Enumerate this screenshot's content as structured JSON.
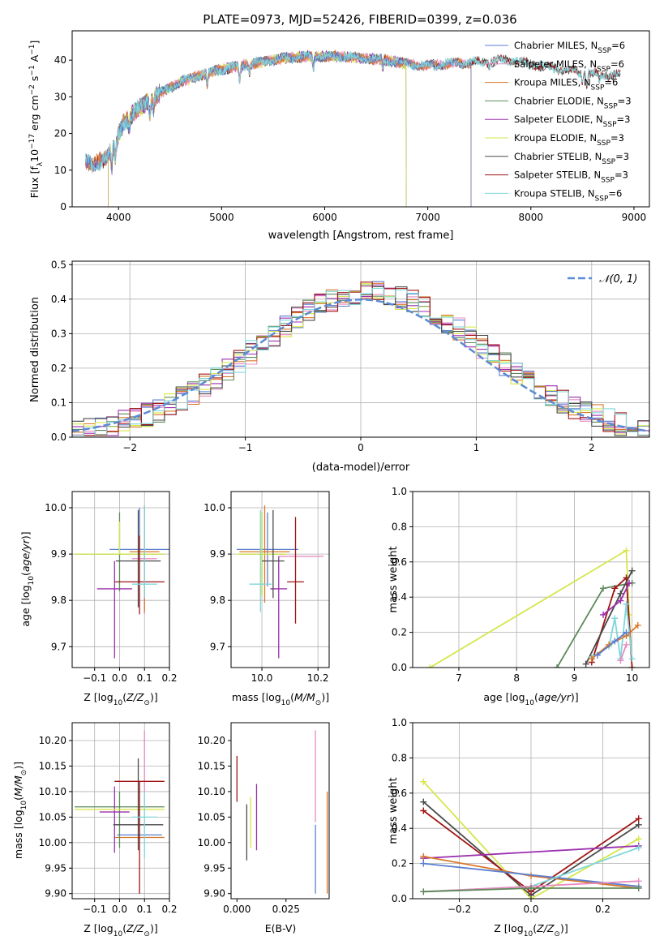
{
  "figure_title": "PLATE=0973, MJD=52426, FIBERID=0399, z=0.036",
  "colors": {
    "chabrier_miles": "#5b7fd0",
    "salpeter_miles": "#e88cc0",
    "kroupa_miles": "#d9782a",
    "chabrier_elodie": "#5d8a5a",
    "salpeter_elodie": "#9b2fae",
    "kroupa_elodie": "#d6e64a",
    "chabrier_stelib": "#4a4a4a",
    "salpeter_stelib": "#a01515",
    "kroupa_stelib": "#7fd6dc"
  },
  "chart_data": [
    {
      "type": "line",
      "id": "spectrum",
      "xlabel": "wavelength [Angstrom, rest frame]",
      "ylabel": "Flux [f_λ 10^-17 erg cm^-2 s^-1 A^-1]",
      "xlim": [
        3550,
        9150
      ],
      "ylim": [
        0,
        48
      ],
      "xticks": [
        4000,
        5000,
        6000,
        7000,
        8000,
        9000
      ],
      "yticks": [
        0,
        10,
        20,
        30,
        40
      ],
      "grid": false,
      "legend_position": "top-right",
      "legend": [
        {
          "key": "chabrier_miles",
          "label": "Chabrier MILES, N",
          "sub": "SSP",
          "suffix": "=6"
        },
        {
          "key": "salpeter_miles",
          "label": "Salpeter MILES, N",
          "sub": "SSP",
          "suffix": "=6"
        },
        {
          "key": "kroupa_miles",
          "label": "Kroupa MILES, N",
          "sub": "SSP",
          "suffix": "=6"
        },
        {
          "key": "chabrier_elodie",
          "label": "Chabrier ELODIE, N",
          "sub": "SSP",
          "suffix": "=3"
        },
        {
          "key": "salpeter_elodie",
          "label": "Salpeter ELODIE, N",
          "sub": "SSP",
          "suffix": "=3"
        },
        {
          "key": "kroupa_elodie",
          "label": "Kroupa ELODIE, N",
          "sub": "SSP",
          "suffix": "=3"
        },
        {
          "key": "chabrier_stelib",
          "label": "Chabrier STELIB, N",
          "sub": "SSP",
          "suffix": "=3"
        },
        {
          "key": "salpeter_stelib",
          "label": "Salpeter STELIB, N",
          "sub": "SSP",
          "suffix": "=3"
        },
        {
          "key": "kroupa_stelib",
          "label": "Kroupa STELIB, N",
          "sub": "SSP",
          "suffix": "=6"
        }
      ],
      "continuum": [
        [
          3680,
          13
        ],
        [
          3750,
          11
        ],
        [
          3850,
          13
        ],
        [
          3950,
          16
        ],
        [
          4050,
          23
        ],
        [
          4200,
          27
        ],
        [
          4400,
          31
        ],
        [
          4600,
          34
        ],
        [
          4800,
          36
        ],
        [
          5000,
          37.5
        ],
        [
          5200,
          38.5
        ],
        [
          5400,
          39.5
        ],
        [
          5600,
          40.5
        ],
        [
          5800,
          41
        ],
        [
          6000,
          41
        ],
        [
          6200,
          41
        ],
        [
          6400,
          40.5
        ],
        [
          6600,
          40
        ],
        [
          6800,
          39
        ],
        [
          7000,
          38.5
        ],
        [
          7200,
          39
        ],
        [
          7500,
          39.5
        ],
        [
          7800,
          40
        ],
        [
          8100,
          38.5
        ],
        [
          8400,
          37
        ],
        [
          8700,
          36
        ],
        [
          8870,
          36
        ]
      ],
      "range_ends": {
        "miles": [
          3680,
          7420
        ],
        "elodie": [
          3900,
          6790
        ],
        "stelib": [
          3680,
          8870
        ]
      },
      "absorption_lines": [
        [
          3934,
          5
        ],
        [
          3969,
          4
        ],
        [
          4102,
          3
        ],
        [
          4304,
          4
        ],
        [
          4340,
          3
        ],
        [
          4861,
          3
        ],
        [
          5175,
          4
        ],
        [
          5270,
          2
        ],
        [
          5890,
          3
        ],
        [
          6563,
          2
        ],
        [
          7600,
          1.5
        ],
        [
          8498,
          2
        ],
        [
          8542,
          3
        ],
        [
          8662,
          2
        ]
      ]
    },
    {
      "type": "line",
      "id": "residual-histogram",
      "xlabel": "(data-model)/error",
      "ylabel": "Normed distribution",
      "xlim": [
        -2.5,
        2.5
      ],
      "ylim": [
        0,
        0.51
      ],
      "xticks": [
        -2,
        -1,
        0,
        1,
        2
      ],
      "yticks": [
        0.0,
        0.1,
        0.2,
        0.3,
        0.4,
        0.5
      ],
      "grid": true,
      "reference_curve": {
        "label": "𝒩(0, 1)",
        "mu": 0,
        "sigma": 1
      },
      "bins": {
        "start": -2.5,
        "width": 0.1,
        "count": 50
      }
    },
    {
      "type": "scatter",
      "id": "z-age",
      "xlabel": "Z [log10(Z/Z⊙)]",
      "ylabel": "age [log10(age/yr)]",
      "xlim": [
        -0.19,
        0.2
      ],
      "ylim": [
        9.655,
        10.035
      ],
      "xticks": [
        -0.1,
        0.0,
        0.1,
        0.2
      ],
      "yticks": [
        9.7,
        9.8,
        9.9,
        10.0
      ],
      "grid": true,
      "points": [
        {
          "s": "chabrier_miles",
          "x": 0.08,
          "y": 9.91,
          "xerr": 0.12,
          "yerr": [
            0.0,
            0.09
          ]
        },
        {
          "s": "salpeter_miles",
          "x": 0.1,
          "y": 9.89,
          "xerr": 0.05,
          "yerr": [
            0.12,
            0.11
          ]
        },
        {
          "s": "kroupa_miles",
          "x": 0.1,
          "y": 9.905,
          "xerr": 0.06,
          "yerr": [
            0.13,
            0.1
          ]
        },
        {
          "s": "chabrier_elodie",
          "x": 0.0,
          "y": 9.9,
          "xerr": 0.18,
          "yerr": [
            0.08,
            0.09
          ]
        },
        {
          "s": "salpeter_elodie",
          "x": -0.02,
          "y": 9.825,
          "xerr": 0.07,
          "yerr": [
            0.15,
            0.06
          ]
        },
        {
          "s": "kroupa_elodie",
          "x": 0.0,
          "y": 9.9,
          "xerr": 0.18,
          "yerr": [
            0.0,
            0.07
          ]
        },
        {
          "s": "chabrier_stelib",
          "x": 0.075,
          "y": 9.885,
          "xerr": 0.09,
          "yerr": [
            0.1,
            0.11
          ]
        },
        {
          "s": "salpeter_stelib",
          "x": 0.08,
          "y": 9.84,
          "xerr": 0.1,
          "yerr": [
            0.07,
            0.1
          ]
        },
        {
          "s": "kroupa_stelib",
          "x": 0.1,
          "y": 9.835,
          "xerr": 0.05,
          "yerr": [
            0.03,
            0.17
          ]
        }
      ]
    },
    {
      "type": "scatter",
      "id": "mass-age",
      "xlabel": "mass [log10(M/M⊙)]",
      "ylabel": "",
      "xlim": [
        9.89,
        10.24
      ],
      "ylim": [
        9.655,
        10.035
      ],
      "xticks": [
        10.0,
        10.2
      ],
      "yticks": [
        9.7,
        9.8,
        9.9,
        10.0
      ],
      "grid": true,
      "points": [
        {
          "s": "chabrier_miles",
          "x": 10.02,
          "y": 9.91,
          "xerr": 0.11,
          "yerr": [
            0.08,
            0.08
          ]
        },
        {
          "s": "salpeter_miles",
          "x": 10.14,
          "y": 9.895,
          "xerr": 0.08,
          "yerr": [
            0.0,
            0.0
          ]
        },
        {
          "s": "kroupa_miles",
          "x": 10.01,
          "y": 9.905,
          "xerr": 0.09,
          "yerr": [
            0.11,
            0.1
          ]
        },
        {
          "s": "chabrier_elodie",
          "x": 10.0,
          "y": 9.9,
          "xerr": 0.08,
          "yerr": [
            0.09,
            0.09
          ]
        },
        {
          "s": "salpeter_elodie",
          "x": 10.06,
          "y": 9.825,
          "xerr": 0.03,
          "yerr": [
            0.15,
            0.07
          ]
        },
        {
          "s": "kroupa_elodie",
          "x": 10.0,
          "y": 9.9,
          "xerr": 0.09,
          "yerr": [
            0.09,
            0.09
          ]
        },
        {
          "s": "chabrier_stelib",
          "x": 10.04,
          "y": 9.885,
          "xerr": 0.04,
          "yerr": [
            0.08,
            0.11
          ]
        },
        {
          "s": "salpeter_stelib",
          "x": 10.12,
          "y": 9.84,
          "xerr": 0.03,
          "yerr": [
            0.09,
            0.14
          ]
        },
        {
          "s": "kroupa_stelib",
          "x": 9.995,
          "y": 9.835,
          "xerr": 0.04,
          "yerr": [
            0.06,
            0.16
          ]
        }
      ]
    },
    {
      "type": "line",
      "id": "age-weights",
      "xlabel": "age [log10(age/yr)]",
      "ylabel": "mass weight",
      "xlim": [
        6.2,
        10.3
      ],
      "ylim": [
        0,
        1.0
      ],
      "xticks": [
        7,
        8,
        9,
        10
      ],
      "yticks": [
        0.0,
        0.2,
        0.4,
        0.6,
        0.8,
        1.0
      ],
      "grid": true,
      "series": [
        {
          "s": "kroupa_elodie",
          "x": [
            6.5,
            9.9,
            9.95,
            10.0
          ],
          "y": [
            0.0,
            0.665,
            0.3,
            0.0
          ]
        },
        {
          "s": "chabrier_elodie",
          "x": [
            8.7,
            9.5,
            10.0
          ],
          "y": [
            0.0,
            0.45,
            0.48
          ]
        },
        {
          "s": "salpeter_stelib",
          "x": [
            9.3,
            9.7,
            9.9,
            10.0
          ],
          "y": [
            0.03,
            0.45,
            0.51,
            0.0
          ]
        },
        {
          "s": "chabrier_stelib",
          "x": [
            9.2,
            9.8,
            10.0
          ],
          "y": [
            0.02,
            0.42,
            0.55
          ]
        },
        {
          "s": "salpeter_elodie",
          "x": [
            9.5,
            9.8,
            9.95
          ],
          "y": [
            0.3,
            0.38,
            0.48
          ]
        },
        {
          "s": "kroupa_stelib",
          "x": [
            9.3,
            9.6,
            9.7,
            9.8,
            9.9,
            10.0
          ],
          "y": [
            0.06,
            0.12,
            0.28,
            0.05,
            0.36,
            0.05
          ]
        },
        {
          "s": "kroupa_miles",
          "x": [
            9.3,
            9.6,
            9.9,
            10.1
          ],
          "y": [
            0.05,
            0.13,
            0.18,
            0.24
          ]
        },
        {
          "s": "chabrier_miles",
          "x": [
            9.4,
            9.7,
            9.9
          ],
          "y": [
            0.07,
            0.15,
            0.2
          ]
        },
        {
          "s": "salpeter_miles",
          "x": [
            9.8,
            9.9
          ],
          "y": [
            0.04,
            0.13
          ]
        }
      ]
    },
    {
      "type": "scatter",
      "id": "z-mass",
      "xlabel": "Z [log10(Z/Z⊙)]",
      "ylabel": "mass [log10(M/M⊙)]",
      "xlim": [
        -0.19,
        0.2
      ],
      "ylim": [
        9.89,
        10.235
      ],
      "xticks": [
        -0.1,
        0.0,
        0.1,
        0.2
      ],
      "yticks": [
        9.9,
        9.95,
        10.0,
        10.05,
        10.1,
        10.15,
        10.2
      ],
      "grid": true,
      "points": [
        {
          "s": "chabrier_miles",
          "x": 0.08,
          "y": 10.015,
          "xerr": 0.09,
          "yerr": [
            0.0,
            0.0
          ]
        },
        {
          "s": "salpeter_miles",
          "x": 0.1,
          "y": 10.14,
          "xerr": 0.0,
          "yerr": [
            0.07,
            0.08
          ]
        },
        {
          "s": "kroupa_miles",
          "x": 0.08,
          "y": 10.01,
          "xerr": 0.1,
          "yerr": [
            0.0,
            0.0
          ]
        },
        {
          "s": "chabrier_elodie",
          "x": 0.0,
          "y": 10.07,
          "xerr": 0.18,
          "yerr": [
            0.08,
            0.03
          ]
        },
        {
          "s": "salpeter_elodie",
          "x": -0.02,
          "y": 10.06,
          "xerr": 0.06,
          "yerr": [
            0.08,
            0.05
          ]
        },
        {
          "s": "kroupa_elodie",
          "x": 0.0,
          "y": 10.065,
          "xerr": 0.18,
          "yerr": [
            0.0,
            0.0
          ]
        },
        {
          "s": "chabrier_stelib",
          "x": 0.075,
          "y": 10.035,
          "xerr": 0.1,
          "yerr": [
            0.05,
            0.13
          ]
        },
        {
          "s": "salpeter_stelib",
          "x": 0.08,
          "y": 10.12,
          "xerr": 0.1,
          "yerr": [
            0.22,
            0.0
          ]
        },
        {
          "s": "kroupa_stelib",
          "x": 0.1,
          "y": 10.05,
          "xerr": 0.05,
          "yerr": [
            0.08,
            0.05
          ]
        }
      ]
    },
    {
      "type": "scatter",
      "id": "ebv-mass",
      "xlabel": "E(B-V)",
      "ylabel": "",
      "xlim": [
        -0.003,
        0.047
      ],
      "ylim": [
        9.89,
        10.235
      ],
      "xticks": [
        0.0,
        0.025
      ],
      "yticks": [
        9.9,
        9.95,
        10.0,
        10.05,
        10.1,
        10.15,
        10.2
      ],
      "grid": false,
      "points": [
        {
          "s": "salpeter_stelib",
          "x": 0.0,
          "y": 10.14,
          "xerr": 0.0,
          "yerr": [
            0.06,
            0.03
          ]
        },
        {
          "s": "chabrier_stelib",
          "x": 0.005,
          "y": 10.02,
          "xerr": 0.0,
          "yerr": [
            0.055,
            0.055
          ]
        },
        {
          "s": "kroupa_elodie",
          "x": 0.007,
          "y": 10.04,
          "xerr": 0.0,
          "yerr": [
            0.05,
            0.05
          ]
        },
        {
          "s": "salpeter_elodie",
          "x": 0.01,
          "y": 10.05,
          "xerr": 0.0,
          "yerr": [
            0.065,
            0.065
          ]
        },
        {
          "s": "chabrier_miles",
          "x": 0.04,
          "y": 9.97,
          "xerr": 0.0,
          "yerr": [
            0.07,
            0.065
          ]
        },
        {
          "s": "salpeter_miles",
          "x": 0.04,
          "y": 10.13,
          "xerr": 0.0,
          "yerr": [
            0.09,
            0.09
          ]
        },
        {
          "s": "kroupa_miles",
          "x": 0.046,
          "y": 10.0,
          "xerr": 0.0,
          "yerr": [
            0.1,
            0.1
          ]
        }
      ]
    },
    {
      "type": "line",
      "id": "z-weights",
      "xlabel": "Z [log10(Z/Z⊙)]",
      "ylabel": "mass weight",
      "xlim": [
        -0.33,
        0.33
      ],
      "ylim": [
        0,
        1.0
      ],
      "xticks": [
        -0.2,
        0.0,
        0.2
      ],
      "yticks": [
        0.0,
        0.2,
        0.4,
        0.6,
        0.8,
        1.0
      ],
      "grid": true,
      "series": [
        {
          "s": "kroupa_elodie",
          "x": [
            -0.3,
            0.0,
            0.3
          ],
          "y": [
            0.665,
            0.0,
            0.34
          ]
        },
        {
          "s": "chabrier_stelib",
          "x": [
            -0.3,
            0.0,
            0.3
          ],
          "y": [
            0.55,
            0.02,
            0.42
          ]
        },
        {
          "s": "salpeter_stelib",
          "x": [
            -0.3,
            0.0,
            0.3
          ],
          "y": [
            0.5,
            0.04,
            0.455
          ]
        },
        {
          "s": "salpeter_elodie",
          "x": [
            -0.3,
            0.3
          ],
          "y": [
            0.23,
            0.3
          ]
        },
        {
          "s": "kroupa_miles",
          "x": [
            -0.3,
            0.0,
            0.3
          ],
          "y": [
            0.24,
            0.13,
            0.06
          ]
        },
        {
          "s": "chabrier_miles",
          "x": [
            -0.3,
            0.3
          ],
          "y": [
            0.2,
            0.07
          ]
        },
        {
          "s": "kroupa_stelib",
          "x": [
            -0.3,
            0.0,
            0.3
          ],
          "y": [
            0.04,
            0.07,
            0.29
          ]
        },
        {
          "s": "salpeter_miles",
          "x": [
            -0.3,
            0.0,
            0.3
          ],
          "y": [
            0.04,
            0.07,
            0.1
          ]
        },
        {
          "s": "chabrier_elodie",
          "x": [
            -0.3,
            0.0,
            0.3
          ],
          "y": [
            0.04,
            0.06,
            0.06
          ]
        }
      ]
    }
  ]
}
